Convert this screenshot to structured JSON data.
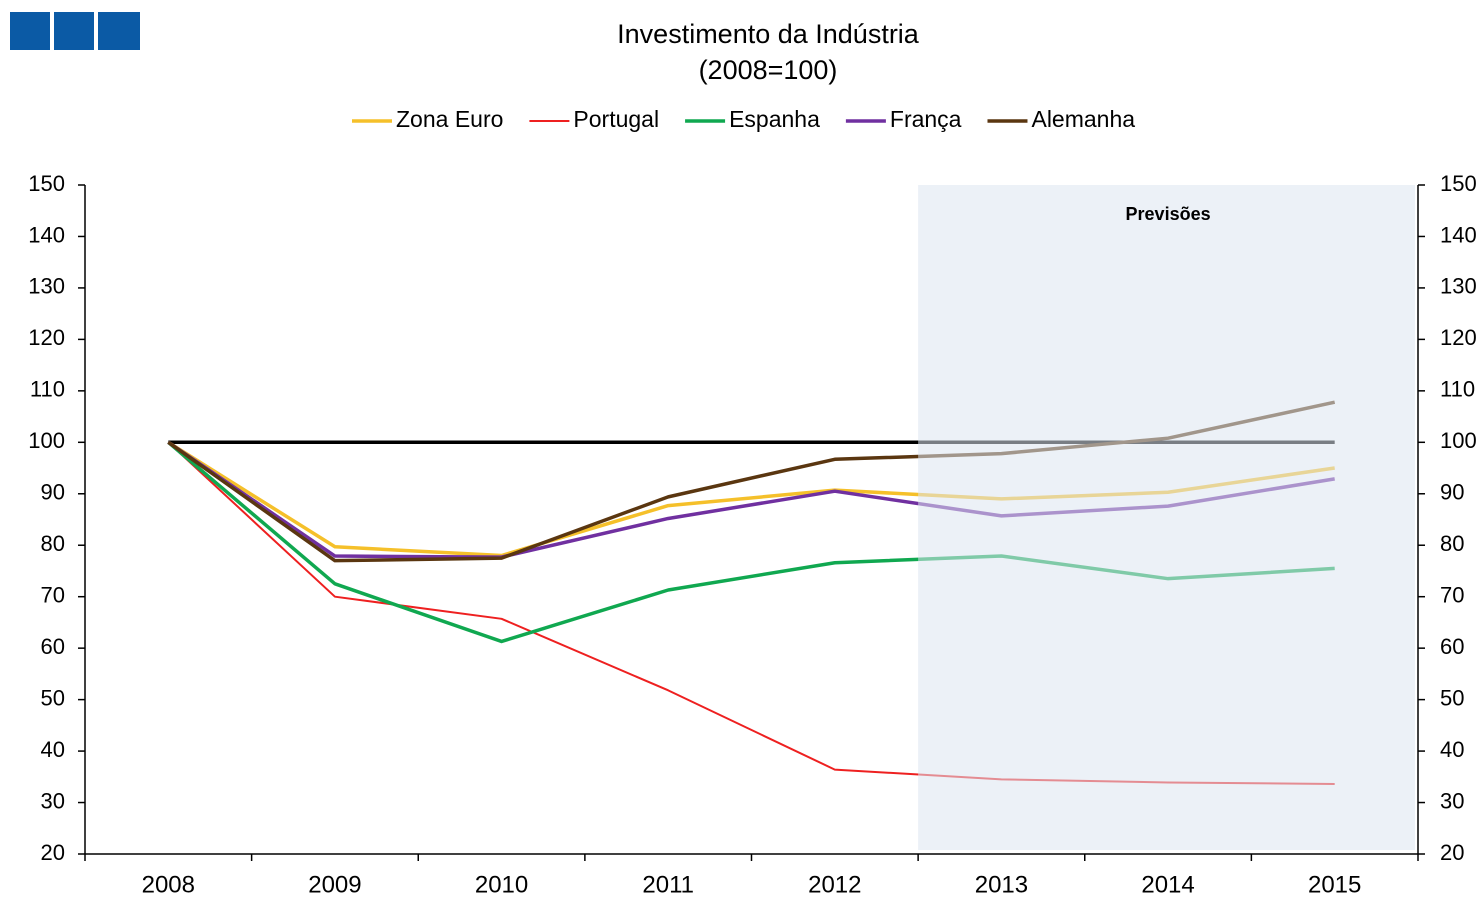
{
  "chart_data": {
    "type": "line",
    "title": "Investimento da Indústria",
    "subtitle": "(2008=100)",
    "categories": [
      "2008",
      "2009",
      "2010",
      "2011",
      "2012",
      "2013",
      "2014",
      "2015"
    ],
    "series": [
      {
        "name": "Zona Euro",
        "color": "#f5c02a",
        "values": [
          100,
          79.7,
          78,
          87.7,
          90.7,
          89,
          90.3,
          95
        ]
      },
      {
        "name": "Portugal",
        "color": "#ee2020",
        "values": [
          100,
          70,
          65.7,
          51.8,
          36.4,
          34.5,
          33.9,
          33.6
        ]
      },
      {
        "name": "Espanha",
        "color": "#10a850",
        "values": [
          100,
          72.5,
          61.3,
          71.3,
          76.6,
          77.9,
          73.5,
          75.5
        ]
      },
      {
        "name": "França",
        "color": "#7030a0",
        "values": [
          100,
          77.9,
          77.7,
          85.2,
          90.5,
          85.7,
          87.6,
          92.9
        ]
      },
      {
        "name": "Alemanha",
        "color": "#5a3610",
        "values": [
          100,
          77,
          77.5,
          89.4,
          96.7,
          97.8,
          100.8,
          107.8
        ]
      }
    ],
    "reference_line": 100,
    "forecast": {
      "label": "Previsões",
      "from": "2013"
    },
    "ylim": [
      20,
      150
    ],
    "yticks": [
      20,
      30,
      40,
      50,
      60,
      70,
      80,
      90,
      100,
      110,
      120,
      130,
      140,
      150
    ],
    "y2lim": [
      20,
      150
    ],
    "y2ticks": [
      20,
      30,
      40,
      50,
      60,
      70,
      80,
      90,
      100,
      110,
      120,
      130,
      140,
      150
    ],
    "legend": "top"
  }
}
